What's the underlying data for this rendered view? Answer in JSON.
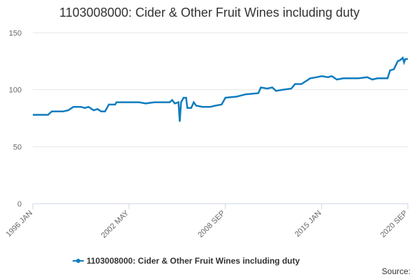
{
  "chart_data": {
    "type": "line",
    "title": "1103008000: Cider & Other Fruit Wines including duty",
    "source": "Source:",
    "x": [
      "1996 JAN",
      "1997 JAN",
      "1997 APR",
      "1998 JAN",
      "1998 MAY",
      "1998 SEP",
      "1999 MAR",
      "1999 JUN",
      "1999 SEP",
      "2000 JAN",
      "2000 APR",
      "2000 JUL",
      "2000 OCT",
      "2001 JAN",
      "2001 JUN",
      "2001 JUL",
      "2002 MAY",
      "2003 JAN",
      "2003 JUN",
      "2004 JAN",
      "2005 JAN",
      "2005 MAR",
      "2005 MAY",
      "2005 AUG",
      "2005 SEP",
      "2005 OCT",
      "2005 DEC",
      "2006 FEB",
      "2006 MAR",
      "2006 JUN",
      "2006 AUG",
      "2006 OCT",
      "2007 MAR",
      "2007 SEP",
      "2008 JAN",
      "2008 JUN",
      "2008 SEP",
      "2009 JUN",
      "2010 JAN",
      "2010 NOV",
      "2011 JAN",
      "2011 JUN",
      "2011 OCT",
      "2012 JAN",
      "2012 JUN",
      "2013 JAN",
      "2013 APR",
      "2013 SEP",
      "2014 APR",
      "2014 SEP",
      "2015 JAN",
      "2015 JUN",
      "2015 SEP",
      "2016 JAN",
      "2016 JUN",
      "2017 JAN",
      "2017 JUN",
      "2018 JAN",
      "2018 MAY",
      "2018 SEP",
      "2019 JAN",
      "2019 MAY",
      "2019 JUL",
      "2019 OCT",
      "2020 JAN",
      "2020 MAR",
      "2020 MAY",
      "2020 JUN",
      "2020 JUL",
      "2020 SEP"
    ],
    "series": [
      {
        "name": "1103008000: Cider & Other Fruit Wines including duty",
        "color": "#0e7cbf",
        "values": [
          78,
          78,
          81,
          81,
          82,
          85,
          85,
          84,
          85,
          82,
          83,
          81,
          81,
          87,
          87,
          89,
          89,
          89,
          88,
          89,
          89,
          91,
          88,
          89,
          72,
          89,
          93,
          93,
          84,
          84,
          89,
          86,
          85,
          85,
          86,
          87,
          93,
          94,
          96,
          97,
          102,
          101,
          102,
          99,
          100,
          101,
          105,
          105,
          110,
          111,
          112,
          111,
          112,
          109,
          110,
          110,
          110,
          111,
          109,
          110,
          110,
          110,
          117,
          118,
          125,
          126,
          128,
          124,
          127,
          127
        ]
      }
    ],
    "xlim": [
      "1996 JAN",
      "2020 SEP"
    ],
    "xticks": [
      "1996 JAN",
      "2002 MAY",
      "2008 SEP",
      "2015 JAN",
      "2020 SEP"
    ],
    "ylim": [
      0,
      150
    ],
    "yticks": [
      0,
      50,
      100,
      150
    ],
    "grid": true,
    "legend": "bottom"
  }
}
